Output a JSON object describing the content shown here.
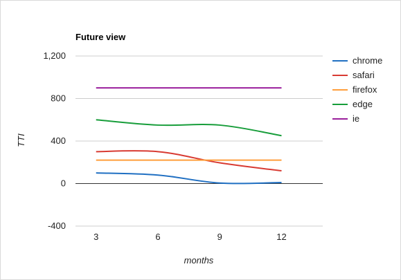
{
  "chart_data": {
    "type": "line",
    "title": "Future view",
    "xlabel": "months",
    "ylabel": "TTI",
    "x": [
      3,
      6,
      9,
      12
    ],
    "xticks": [
      "3",
      "6",
      "9",
      "12"
    ],
    "ylim": [
      -400,
      1200
    ],
    "yticks": [
      "-400",
      "0",
      "400",
      "800",
      "1,200"
    ],
    "ytick_values": [
      -400,
      0,
      400,
      800,
      1200
    ],
    "grid": true,
    "legend_position": "right",
    "series": [
      {
        "name": "chrome",
        "color": "#1f6fc2",
        "values": [
          100,
          80,
          5,
          10
        ]
      },
      {
        "name": "safari",
        "color": "#d83a32",
        "values": [
          300,
          300,
          195,
          120
        ]
      },
      {
        "name": "firefox",
        "color": "#ff9e3b",
        "values": [
          220,
          220,
          220,
          220
        ]
      },
      {
        "name": "edge",
        "color": "#179d3a",
        "values": [
          600,
          550,
          550,
          450
        ]
      },
      {
        "name": "ie",
        "color": "#991e9b",
        "values": [
          900,
          900,
          900,
          900
        ]
      }
    ]
  }
}
